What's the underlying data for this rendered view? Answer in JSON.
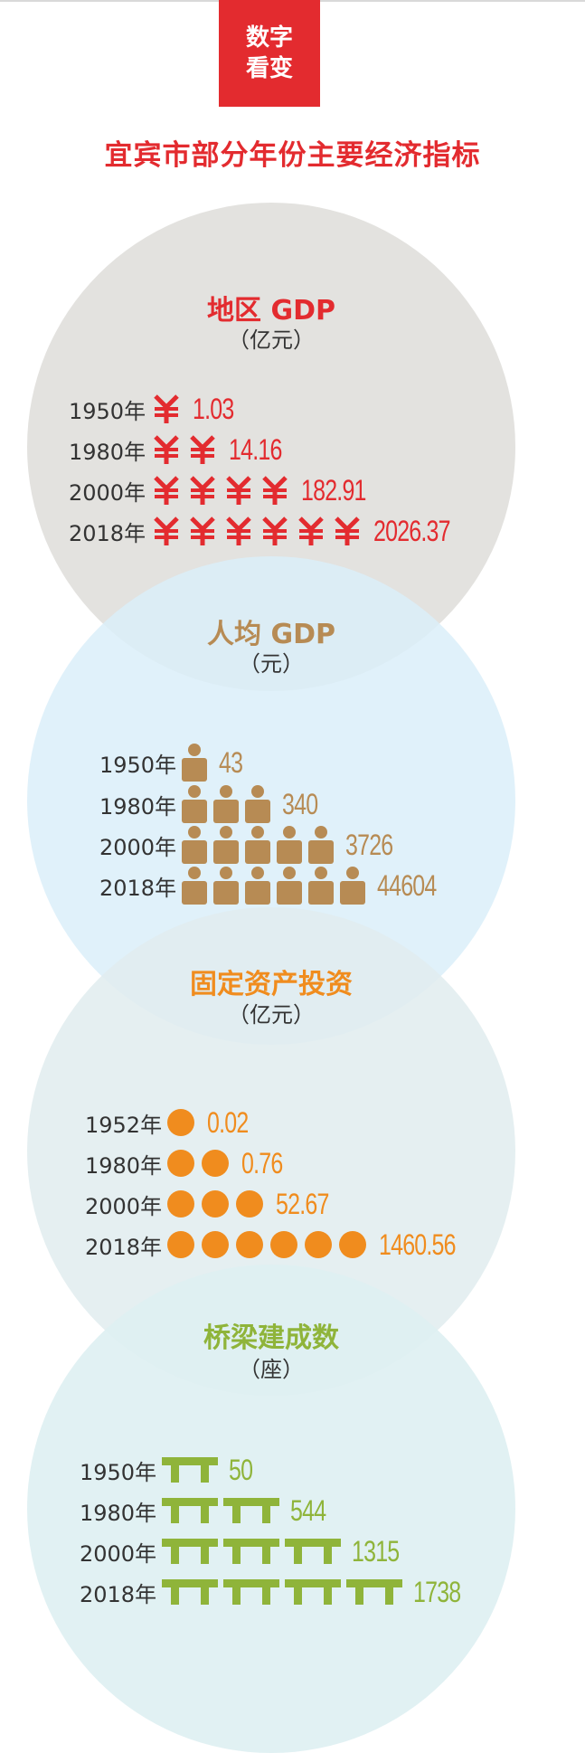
{
  "header": {
    "badge_line1": "数字",
    "badge_line2": "看变",
    "title": "宜宾市部分年份主要经济指标"
  },
  "chart_data": [
    {
      "type": "bar",
      "title": "地区 GDP",
      "unit": "（亿元）",
      "icon": "yuan-icon",
      "color": "#e32b2f",
      "categories": [
        "1950年",
        "1980年",
        "2000年",
        "2018年"
      ],
      "value_labels": [
        "1.03",
        "14.16",
        "182.91",
        "2026.37"
      ],
      "values": [
        1.03,
        14.16,
        182.91,
        2026.37
      ],
      "icon_counts": [
        1,
        2,
        4,
        6
      ]
    },
    {
      "type": "bar",
      "title": "人均 GDP",
      "unit": "（元）",
      "icon": "person-icon",
      "color": "#b78b54",
      "categories": [
        "1950年",
        "1980年",
        "2000年",
        "2018年"
      ],
      "value_labels": [
        "43",
        "340",
        "3726",
        "44604"
      ],
      "values": [
        43,
        340,
        3726,
        44604
      ],
      "icon_counts": [
        1,
        3,
        5,
        6
      ]
    },
    {
      "type": "bar",
      "title": "固定资产投资",
      "unit": "（亿元）",
      "icon": "circle-icon",
      "color": "#f08c1e",
      "categories": [
        "1952年",
        "1980年",
        "2000年",
        "2018年"
      ],
      "value_labels": [
        "0.02",
        "0.76",
        "52.67",
        "1460.56"
      ],
      "values": [
        0.02,
        0.76,
        52.67,
        1460.56
      ],
      "icon_counts": [
        1,
        2,
        3,
        6
      ]
    },
    {
      "type": "bar",
      "title": "桥梁建成数",
      "unit": "（座）",
      "icon": "bridge-icon",
      "color": "#8fb43a",
      "categories": [
        "1950年",
        "1980年",
        "2000年",
        "2018年"
      ],
      "value_labels": [
        "50",
        "544",
        "1315",
        "1738"
      ],
      "values": [
        50,
        544,
        1315,
        1738
      ],
      "icon_counts": [
        1,
        2,
        3,
        4
      ]
    }
  ]
}
